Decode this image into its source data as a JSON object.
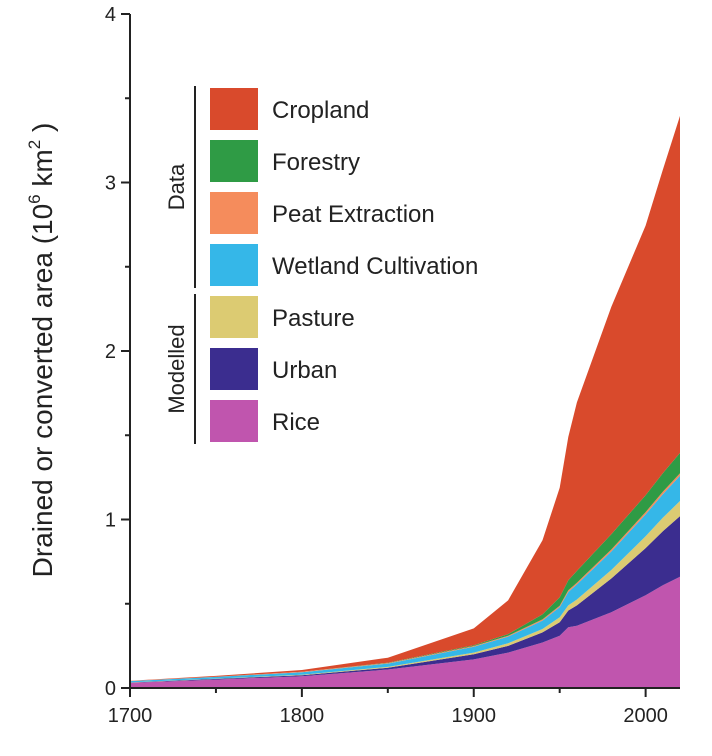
{
  "chart_data": {
    "type": "area",
    "stacked": true,
    "ylabel": {
      "main": "Drained or converted area (10",
      "sup1": "6",
      "mid": " km",
      "sup2": "2",
      "end": " )"
    },
    "xlim": [
      1700,
      2020
    ],
    "ylim": [
      0,
      4
    ],
    "x_ticks": [
      1700,
      1800,
      1900,
      2000
    ],
    "x_tick_labels": [
      "1700",
      "1800",
      "1900",
      "2000"
    ],
    "y_ticks": [
      0,
      1,
      2,
      3,
      4
    ],
    "y_tick_labels": [
      "0",
      "1",
      "2",
      "3",
      "4"
    ],
    "x": [
      1700,
      1750,
      1800,
      1850,
      1900,
      1920,
      1940,
      1950,
      1955,
      1960,
      1980,
      2000,
      2010,
      2020
    ],
    "series": [
      {
        "name": "Rice",
        "color": "#c055ae",
        "values": [
          0.03,
          0.05,
          0.07,
          0.11,
          0.17,
          0.21,
          0.27,
          0.31,
          0.36,
          0.37,
          0.45,
          0.55,
          0.61,
          0.66
        ]
      },
      {
        "name": "Urban",
        "color": "#3b2d8f",
        "values": [
          0.002,
          0.004,
          0.006,
          0.01,
          0.03,
          0.04,
          0.06,
          0.08,
          0.1,
          0.12,
          0.2,
          0.28,
          0.32,
          0.36
        ]
      },
      {
        "name": "Pasture",
        "color": "#dccb72",
        "values": [
          0.001,
          0.002,
          0.003,
          0.005,
          0.01,
          0.015,
          0.02,
          0.03,
          0.03,
          0.035,
          0.05,
          0.07,
          0.08,
          0.09
        ]
      },
      {
        "name": "Wetland Cultivation",
        "color": "#35b7e8",
        "values": [
          0.008,
          0.01,
          0.015,
          0.02,
          0.035,
          0.04,
          0.05,
          0.06,
          0.08,
          0.09,
          0.11,
          0.13,
          0.14,
          0.15
        ]
      },
      {
        "name": "Peat Extraction",
        "color": "#f58c5c",
        "values": [
          0.001,
          0.001,
          0.002,
          0.003,
          0.004,
          0.005,
          0.007,
          0.008,
          0.01,
          0.01,
          0.012,
          0.014,
          0.015,
          0.015
        ]
      },
      {
        "name": "Forestry",
        "color": "#2f9b45",
        "values": [
          0.0,
          0.0,
          0.001,
          0.002,
          0.005,
          0.01,
          0.03,
          0.05,
          0.06,
          0.07,
          0.09,
          0.1,
          0.11,
          0.12
        ]
      },
      {
        "name": "Cropland",
        "color": "#d94a2c",
        "values": [
          0.001,
          0.005,
          0.01,
          0.03,
          0.1,
          0.2,
          0.44,
          0.65,
          0.85,
          1.0,
          1.35,
          1.6,
          1.8,
          2.0
        ]
      }
    ],
    "legend": {
      "placement": "top-left",
      "order": [
        "Cropland",
        "Forestry",
        "Peat Extraction",
        "Wetland Cultivation",
        "Pasture",
        "Urban",
        "Rice"
      ],
      "groups": [
        {
          "label": "Data",
          "items": [
            "Cropland",
            "Forestry",
            "Peat Extraction",
            "Wetland Cultivation"
          ]
        },
        {
          "label": "Modelled",
          "items": [
            "Pasture",
            "Urban",
            "Rice"
          ]
        }
      ]
    },
    "grid": false
  }
}
